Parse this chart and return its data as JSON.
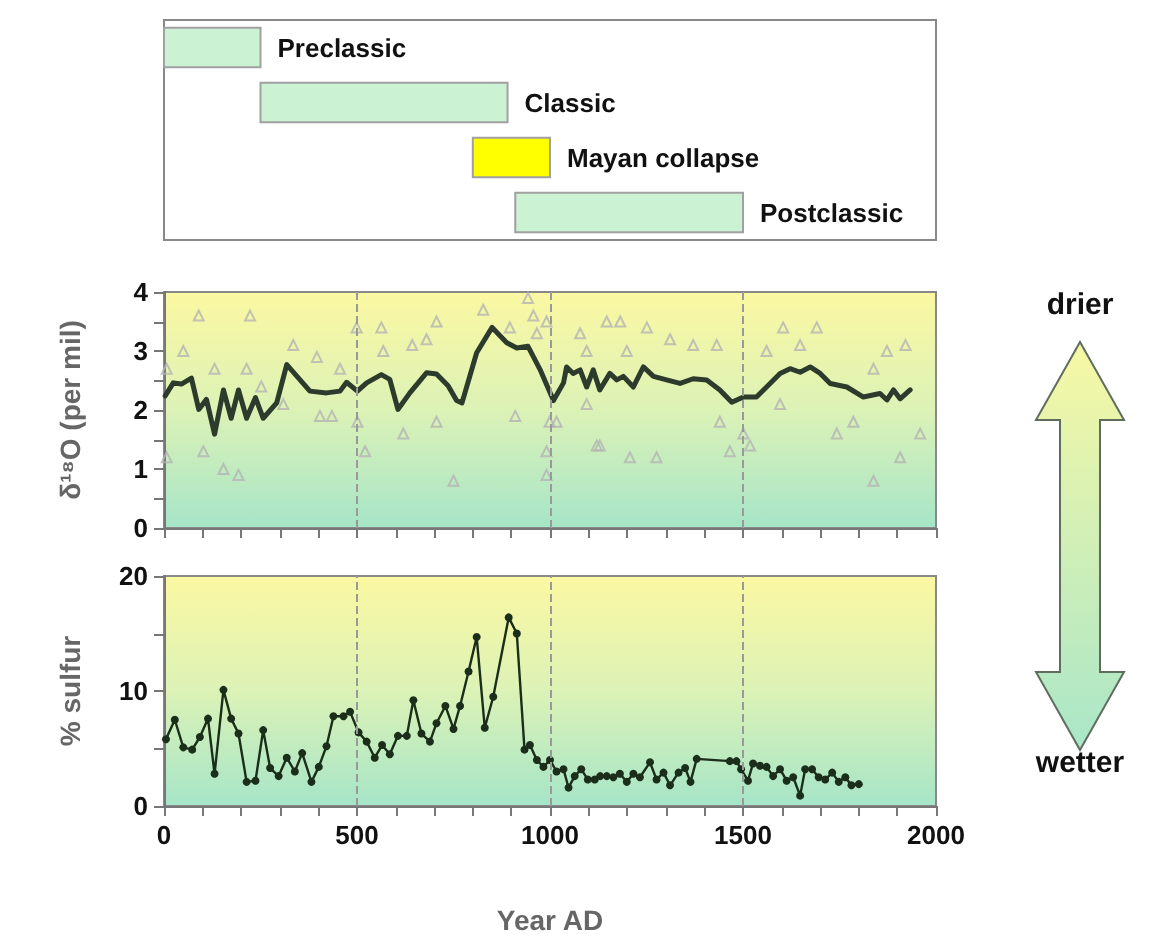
{
  "chart_data": [
    {
      "type": "bar",
      "orientation": "horizontal",
      "categories": [
        "Preclassic",
        "Classic",
        "Mayan collapse",
        "Postclassic"
      ],
      "base": [
        0,
        250,
        800,
        910
      ],
      "values": [
        250,
        640,
        200,
        590
      ],
      "colors": [
        "#ccf2d4",
        "#ccf2d4",
        "#ffff00",
        "#ccf2d4"
      ],
      "xlim": [
        0,
        2000
      ],
      "tick_labels": false
    },
    {
      "type": "line",
      "ylabel": "δ¹⁸O (per mil)",
      "xlim": [
        0,
        2000
      ],
      "ylim": [
        0,
        4
      ],
      "tick_labels": "y",
      "xticks": [
        0,
        {
          "value": 100,
          "label": null
        },
        {
          "value": 200,
          "label": null
        },
        {
          "value": 300,
          "label": null
        },
        {
          "value": 400,
          "label": null
        },
        500,
        {
          "value": 600,
          "label": null
        },
        {
          "value": 700,
          "label": null
        },
        {
          "value": 800,
          "label": null
        },
        {
          "value": 900,
          "label": null
        },
        1000,
        {
          "value": 1100,
          "label": null
        },
        {
          "value": 1200,
          "label": null
        },
        {
          "value": 1300,
          "label": null
        },
        {
          "value": 1400,
          "label": null
        },
        1500,
        {
          "value": 1600,
          "label": null
        },
        {
          "value": 1700,
          "label": null
        },
        {
          "value": 1800,
          "label": null
        },
        {
          "value": 1900,
          "label": null
        },
        2000
      ],
      "yticks": [
        0,
        {
          "value": 0.5,
          "label": null
        },
        1,
        {
          "value": 1.5,
          "label": null
        },
        2,
        {
          "value": 2.5,
          "label": null
        },
        3,
        {
          "value": 3.5,
          "label": null
        },
        4
      ],
      "ref_lines": [
        {
          "axis": "x",
          "value": 500,
          "line_style": "dashed",
          "color": "#999999"
        },
        {
          "axis": "x",
          "value": 1000,
          "line_style": "dashed",
          "color": "#999999"
        },
        {
          "axis": "x",
          "value": 1500,
          "line_style": "dashed",
          "color": "#999999"
        }
      ],
      "annotations": [
        "drier",
        "wetter"
      ],
      "series": [
        {
          "type": "scatter",
          "marker": "triangle",
          "color": "#b4b4b4",
          "x": [
            7,
            7,
            50,
            90,
            102,
            131,
            154,
            193,
            223,
            214,
            252,
            335,
            309,
            396,
            404,
            435,
            456,
            499,
            501,
            521,
            563,
            568,
            620,
            643,
            680,
            706,
            706,
            750,
            827,
            896,
            943,
            957,
            966,
            910,
            991,
            999,
            991,
            991,
            1017,
            1095,
            1095,
            1121,
            1078,
            1147,
            1182,
            1199,
            1251,
            1311,
            1371,
            1432,
            1129,
            1207,
            1276,
            1440,
            1466,
            1501,
            1518,
            1604,
            1648,
            1691,
            1743,
            1786,
            1838,
            1873,
            1907,
            1921,
            1959,
            1838,
            1596,
            1561
          ],
          "values": [
            2.7,
            1.2,
            3.0,
            3.6,
            1.3,
            2.7,
            1.0,
            0.9,
            3.6,
            2.7,
            2.4,
            3.1,
            2.1,
            2.9,
            1.9,
            1.9,
            2.7,
            3.4,
            1.8,
            1.3,
            3.4,
            3.0,
            1.6,
            3.1,
            3.2,
            3.5,
            1.8,
            0.8,
            3.7,
            3.4,
            3.9,
            3.6,
            3.3,
            1.9,
            3.5,
            1.8,
            1.3,
            0.9,
            1.8,
            2.1,
            3.0,
            1.4,
            3.3,
            3.5,
            3.5,
            3.0,
            3.4,
            3.2,
            3.1,
            3.1,
            1.4,
            1.2,
            1.2,
            1.8,
            1.3,
            1.6,
            1.4,
            3.4,
            3.1,
            3.4,
            1.6,
            1.8,
            0.8,
            3.0,
            1.2,
            3.1,
            1.6,
            2.7,
            2.1,
            3.0
          ]
        },
        {
          "type": "line",
          "marker": "none",
          "color": "#2d3b2d",
          "x": [
            3,
            24,
            45,
            71,
            90,
            110,
            131,
            154,
            174,
            193,
            214,
            237,
            257,
            292,
            318,
            378,
            421,
            456,
            473,
            501,
            525,
            563,
            585,
            606,
            637,
            680,
            706,
            736,
            758,
            772,
            810,
            850,
            888,
            914,
            943,
            974,
            1009,
            1035,
            1043,
            1060,
            1078,
            1095,
            1112,
            1129,
            1155,
            1173,
            1190,
            1216,
            1242,
            1268,
            1302,
            1337,
            1371,
            1406,
            1440,
            1471,
            1501,
            1535,
            1561,
            1596,
            1622,
            1648,
            1674,
            1700,
            1726,
            1769,
            1812,
            1855,
            1873,
            1890,
            1907,
            1933
          ],
          "values": [
            2.24,
            2.46,
            2.44,
            2.54,
            2.01,
            2.18,
            1.59,
            2.34,
            1.86,
            2.34,
            1.86,
            2.21,
            1.86,
            2.12,
            2.77,
            2.32,
            2.29,
            2.32,
            2.47,
            2.32,
            2.46,
            2.6,
            2.52,
            2.01,
            2.29,
            2.63,
            2.61,
            2.41,
            2.16,
            2.12,
            2.97,
            3.4,
            3.14,
            3.05,
            3.08,
            2.69,
            2.16,
            2.46,
            2.73,
            2.62,
            2.68,
            2.39,
            2.68,
            2.34,
            2.62,
            2.51,
            2.57,
            2.39,
            2.73,
            2.57,
            2.51,
            2.45,
            2.53,
            2.51,
            2.34,
            2.13,
            2.22,
            2.22,
            2.39,
            2.62,
            2.7,
            2.64,
            2.73,
            2.62,
            2.45,
            2.39,
            2.22,
            2.28,
            2.17,
            2.34,
            2.19,
            2.34
          ]
        }
      ]
    },
    {
      "type": "line",
      "ylabel": "% sulfur",
      "xlabel": "Year AD",
      "xlim": [
        0,
        2000
      ],
      "ylim": [
        0,
        20
      ],
      "xticks": [
        0,
        {
          "value": 100,
          "label": null
        },
        {
          "value": 200,
          "label": null
        },
        {
          "value": 300,
          "label": null
        },
        {
          "value": 400,
          "label": null
        },
        500,
        {
          "value": 600,
          "label": null
        },
        {
          "value": 700,
          "label": null
        },
        {
          "value": 800,
          "label": null
        },
        {
          "value": 900,
          "label": null
        },
        1000,
        {
          "value": 1100,
          "label": null
        },
        {
          "value": 1200,
          "label": null
        },
        {
          "value": 1300,
          "label": null
        },
        {
          "value": 1400,
          "label": null
        },
        1500,
        {
          "value": 1600,
          "label": null
        },
        {
          "value": 1700,
          "label": null
        },
        {
          "value": 1800,
          "label": null
        },
        {
          "value": 1900,
          "label": null
        },
        2000
      ],
      "yticks": [
        0,
        {
          "value": 5,
          "label": null
        },
        10,
        {
          "value": 15,
          "label": null
        },
        20
      ],
      "ref_lines": [
        {
          "axis": "x",
          "value": 500,
          "line_style": "dashed",
          "color": "#999999"
        },
        {
          "axis": "x",
          "value": 1000,
          "line_style": "dashed",
          "color": "#999999"
        },
        {
          "axis": "x",
          "value": 1500,
          "line_style": "dashed",
          "color": "#999999"
        }
      ],
      "marker": "circle",
      "series": [
        {
          "color": "#1a2e1a",
          "x": [
            5,
            28,
            50,
            73,
            93,
            114,
            131,
            154,
            174,
            193,
            214,
            237,
            257,
            275,
            297,
            318,
            339,
            358,
            382,
            401,
            421,
            439,
            465,
            482,
            504,
            525,
            546,
            565,
            585,
            606,
            629,
            646,
            667,
            689,
            706,
            729,
            750,
            767,
            789,
            810,
            831,
            853,
            893,
            914,
            934,
            948,
            966,
            983,
            1000,
            1017,
            1035,
            1048,
            1064,
            1081,
            1098,
            1116,
            1130,
            1147,
            1164,
            1181,
            1199,
            1216,
            1233,
            1259,
            1276,
            1294,
            1311,
            1333,
            1350,
            1364,
            1380,
            1466,
            1483,
            1495,
            1513,
            1526,
            1544,
            1561,
            1578,
            1596,
            1613,
            1630,
            1648,
            1661,
            1679,
            1696,
            1713,
            1731,
            1748,
            1765,
            1781,
            1800
          ],
          "values": [
            5.8,
            7.5,
            5.1,
            4.9,
            6.0,
            7.6,
            2.8,
            10.1,
            7.6,
            6.3,
            2.1,
            2.2,
            6.6,
            3.3,
            2.6,
            4.2,
            3.0,
            4.6,
            2.1,
            3.4,
            5.2,
            7.8,
            7.8,
            8.2,
            6.4,
            5.6,
            4.2,
            5.3,
            4.5,
            6.1,
            6.1,
            9.2,
            6.3,
            5.6,
            7.2,
            8.7,
            6.7,
            8.7,
            11.7,
            14.7,
            6.8,
            9.5,
            16.4,
            15.0,
            4.9,
            5.3,
            4.0,
            3.4,
            4.0,
            3.0,
            3.2,
            1.6,
            2.6,
            3.2,
            2.3,
            2.3,
            2.6,
            2.6,
            2.5,
            2.8,
            2.1,
            2.8,
            2.5,
            3.8,
            2.3,
            2.9,
            1.8,
            2.9,
            3.3,
            2.1,
            4.1,
            3.9,
            3.9,
            3.2,
            2.2,
            3.7,
            3.5,
            3.4,
            2.6,
            3.2,
            2.2,
            2.5,
            0.9,
            3.2,
            3.2,
            2.5,
            2.3,
            2.9,
            2.1,
            2.5,
            1.8,
            1.9
          ]
        }
      ]
    }
  ]
}
